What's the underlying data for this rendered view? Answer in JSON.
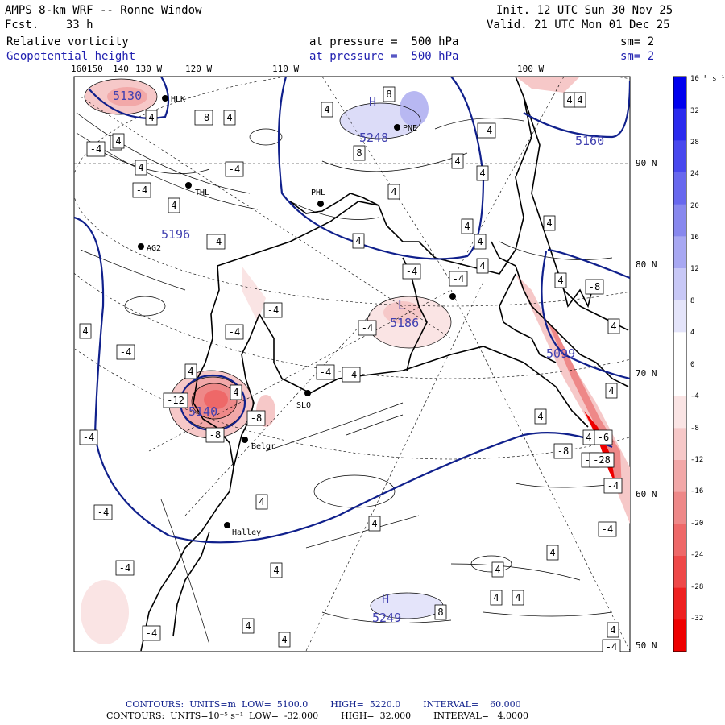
{
  "header": {
    "model": "AMPS 8-km WRF -- Ronne Window",
    "fcst_label": "Fcst.",
    "fcst_value": "33 h",
    "init": "Init. 12 UTC Sun 30 Nov 25",
    "valid": "Valid. 21 UTC Mon 01 Dec 25",
    "field1": "Relative vorticity",
    "field1_level": "at pressure =  500 hPa",
    "field1_sm": "sm= 2",
    "field2": "Geopotential height",
    "field2_level": "at pressure =  500 hPa",
    "field2_sm": "sm= 2"
  },
  "lon_labels": [
    "160150",
    "140",
    "130 W",
    "120 W",
    "110 W",
    "100 W"
  ],
  "lat_labels": [
    "90 N",
    "80 N",
    "70 N",
    "60 N",
    "50 N"
  ],
  "colorbar": {
    "unit": "10⁻⁵ s⁻¹",
    "ticks": [
      "32",
      "28",
      "24",
      "20",
      "16",
      "12",
      "8",
      "4",
      "0",
      "-4",
      "-8",
      "-12",
      "-16",
      "-20",
      "-24",
      "-28",
      "-32"
    ],
    "colors": [
      "#0000ee",
      "#2a2aee",
      "#4848ee",
      "#6868ee",
      "#8888ee",
      "#a8a8f2",
      "#c8c8f6",
      "#e4e4fa",
      "#ffffff",
      "#ffffff",
      "#fae4e4",
      "#f6c8c8",
      "#f2a8a8",
      "#ee8888",
      "#ee6868",
      "#ee4848",
      "#ee2020",
      "#ee0000"
    ]
  },
  "stations": [
    {
      "name": "HLK"
    },
    {
      "name": "PNE"
    },
    {
      "name": "THL"
    },
    {
      "name": "PHL"
    },
    {
      "name": "AG2"
    },
    {
      "name": "SLO"
    },
    {
      "name": "Belgr"
    },
    {
      "name": "Halley"
    }
  ],
  "height_labels": [
    "5248",
    "5160",
    "5196",
    "5186",
    "5140",
    "5249",
    "5130",
    "5099"
  ],
  "centers": [
    "H",
    "L",
    "H",
    "L",
    "H"
  ],
  "vort_labels": [
    "4",
    "-4",
    "8",
    "-8",
    "-12",
    "-28",
    "-6"
  ],
  "footer": {
    "line1": "CONTOURS:  UNITS=m  LOW=  5100.0        HIGH=  5220.0        INTERVAL=    60.000",
    "line2": "CONTOURS:  UNITS=10⁻⁵ s⁻¹  LOW=  -32.000        HIGH=  32.000        INTERVAL=   4.0000"
  }
}
